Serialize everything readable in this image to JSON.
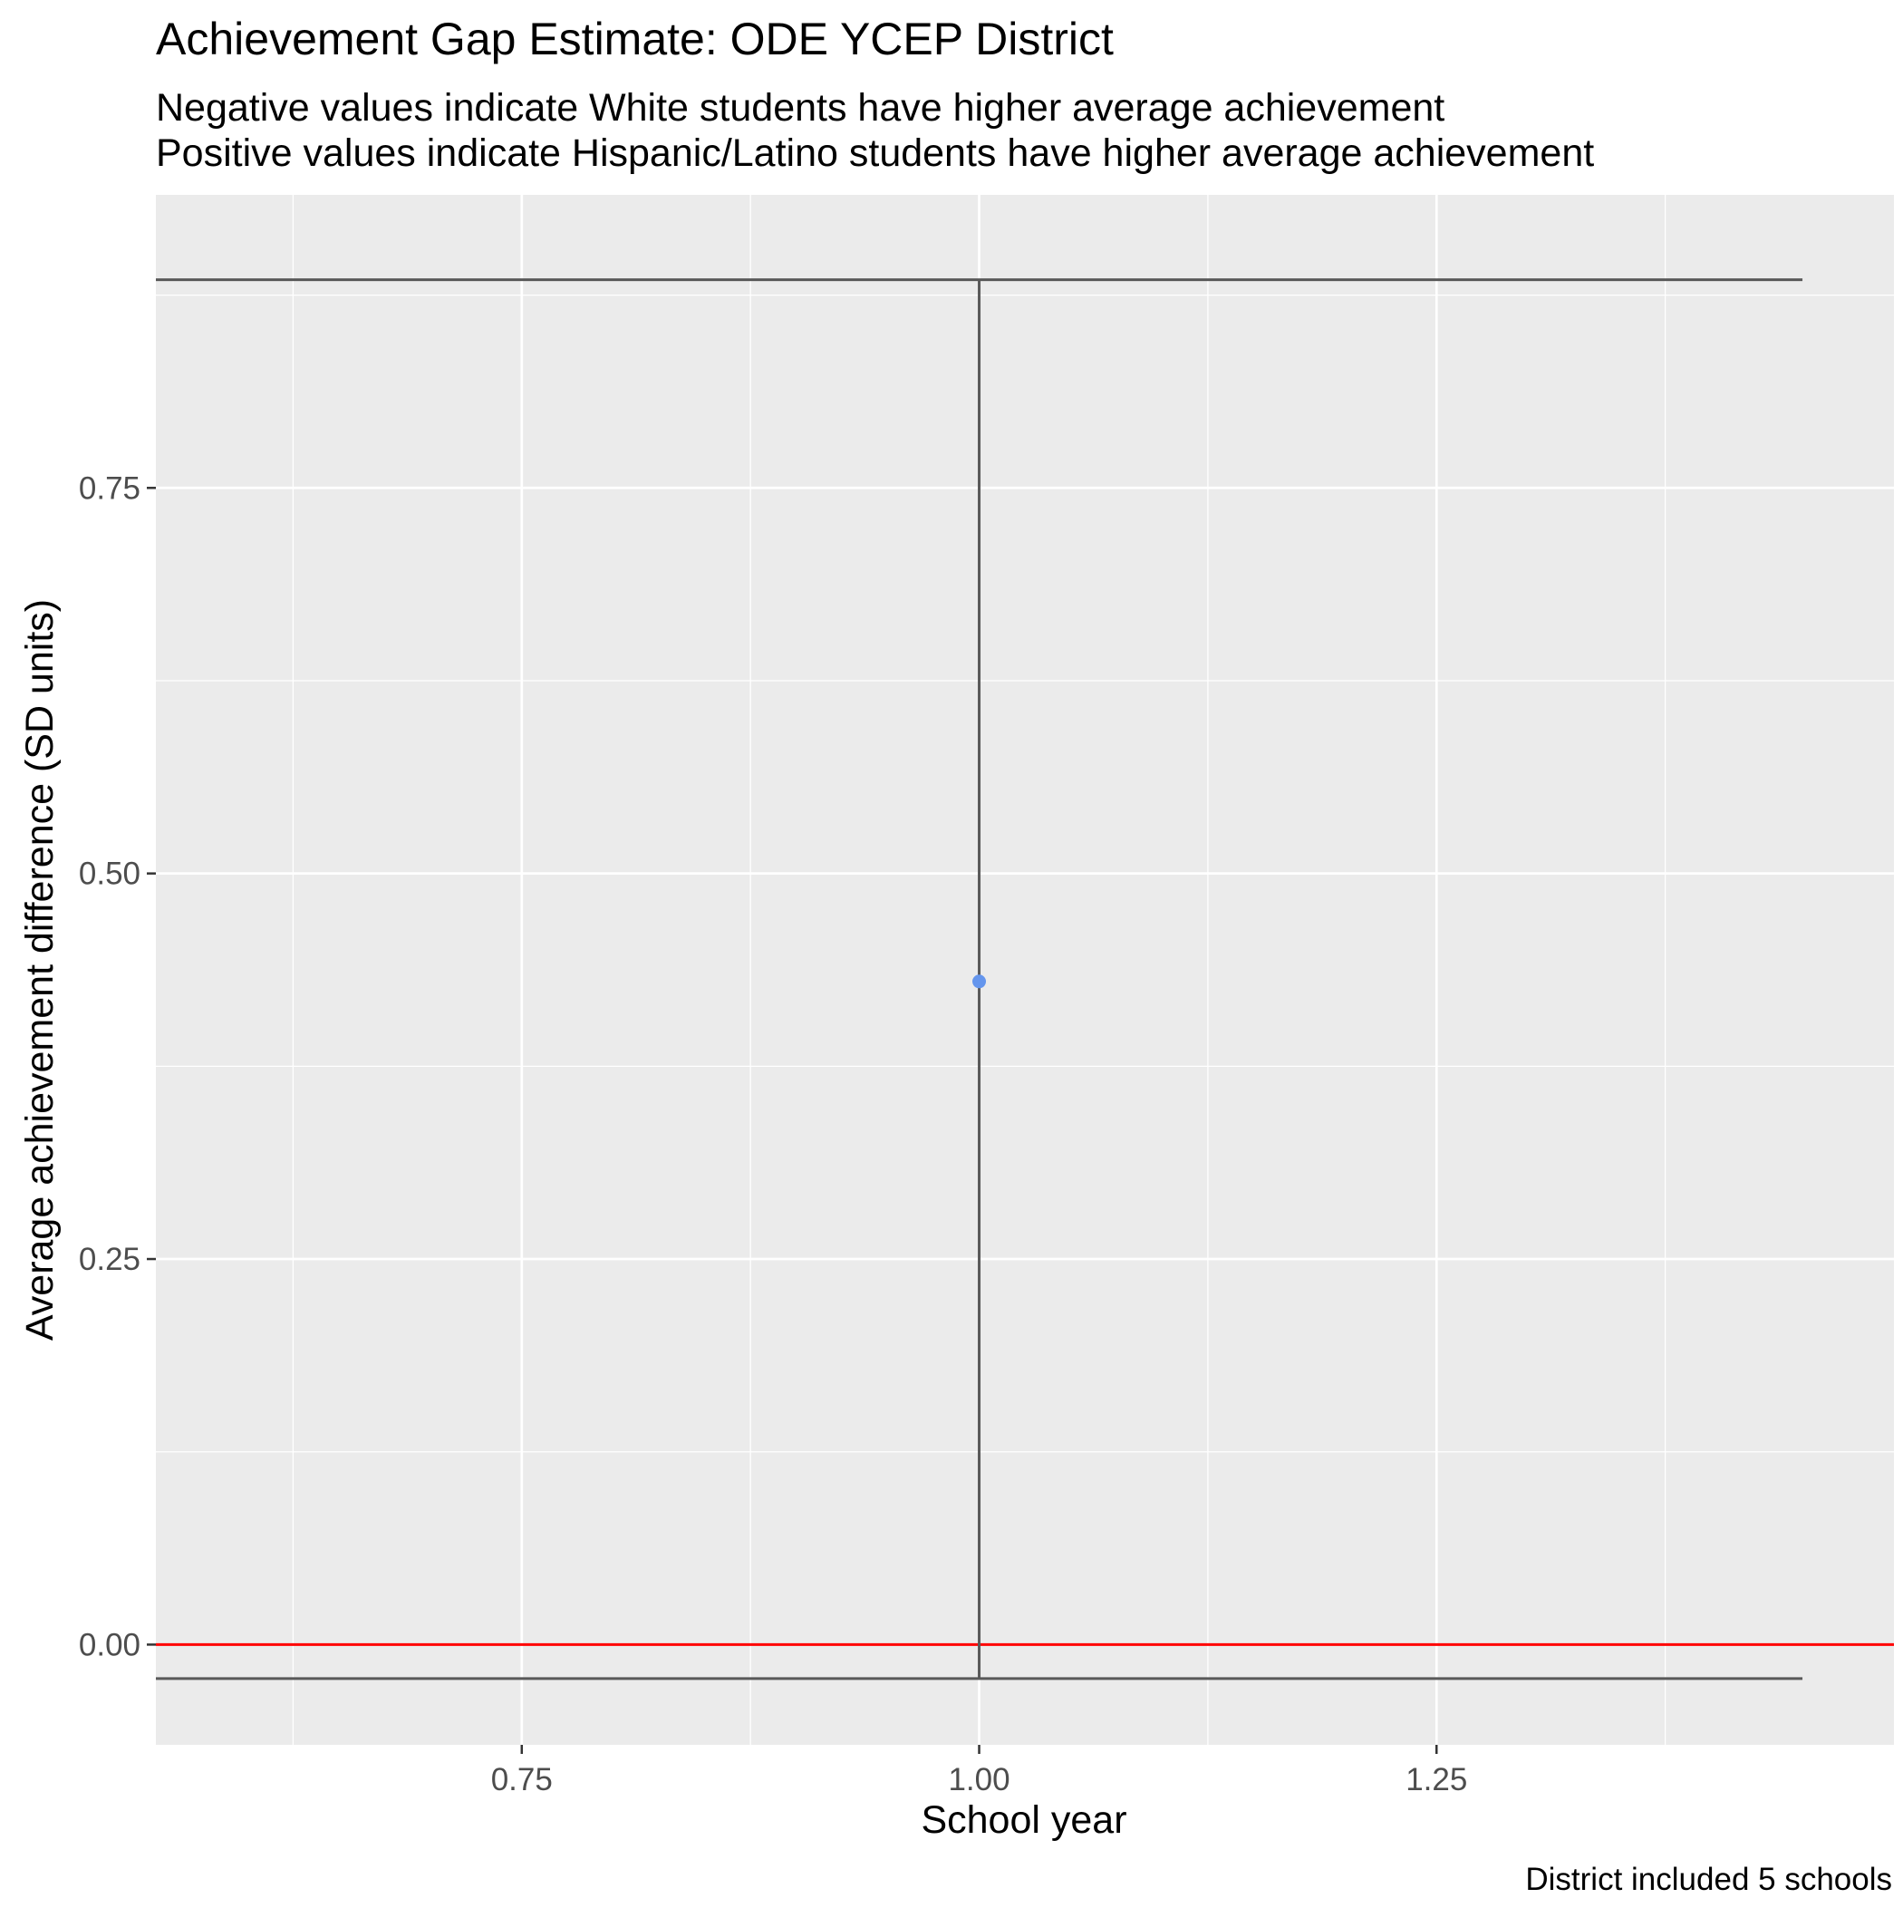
{
  "chart_data": {
    "type": "errorbar",
    "title": "Achievement Gap Estimate: ODE YCEP District",
    "subtitle": [
      "Negative values indicate White students have higher average achievement",
      "Positive values indicate Hispanic/Latino students have higher average achievement"
    ],
    "xlabel": "School year",
    "ylabel": "Average achievement difference (SD units)",
    "caption": "District included 5 schools",
    "xlim": [
      0.55,
      1.5
    ],
    "ylim": [
      -0.065,
      0.94
    ],
    "x_ticks": [
      {
        "value": 0.75,
        "label": "0.75"
      },
      {
        "value": 1.0,
        "label": "1.00"
      },
      {
        "value": 1.25,
        "label": "1.25"
      }
    ],
    "y_ticks": [
      {
        "value": 0.0,
        "label": "0.00"
      },
      {
        "value": 0.25,
        "label": "0.25"
      },
      {
        "value": 0.5,
        "label": "0.50"
      },
      {
        "value": 0.75,
        "label": "0.75"
      }
    ],
    "grid": true,
    "points": [
      {
        "x": 1.0,
        "y": 0.43,
        "ymin": -0.022,
        "ymax": 0.885,
        "color": "#6495ED"
      }
    ],
    "errorbar_halfwidth": 0.45,
    "reference_line": {
      "y": 0,
      "color": "#FF0000"
    },
    "colors": {
      "panel_background": "#EBEBEB",
      "grid": "#FFFFFF",
      "errorbar": "#595959",
      "axis_text": "#4D4D4D"
    }
  }
}
